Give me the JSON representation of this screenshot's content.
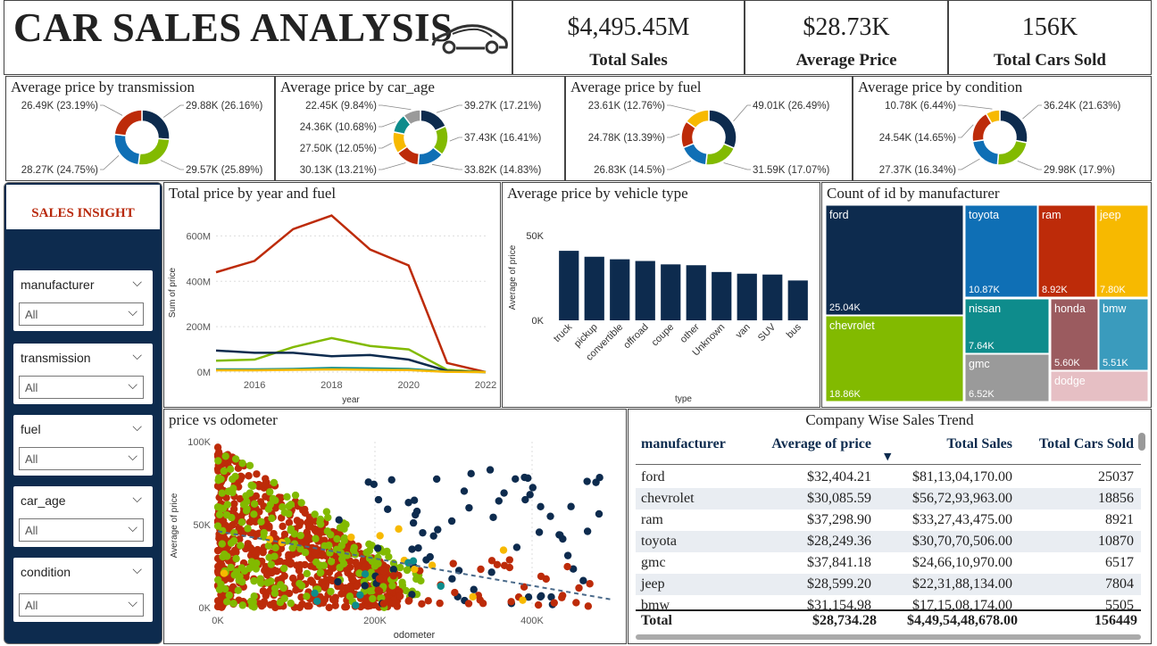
{
  "header": {
    "title": "CAR SALES ANALYSIS",
    "logo_icon": "car-icon"
  },
  "kpis": [
    {
      "value": "$4,495.45M",
      "label": "Total Sales"
    },
    {
      "value": "$28.73K",
      "label": "Average Price"
    },
    {
      "value": "156K",
      "label": "Total Cars Sold"
    }
  ],
  "colors": {
    "navy": "#0d2b4e",
    "green": "#82ba00",
    "blue": "#0f6fb5",
    "red": "#bd2b09",
    "yellow": "#f7b900",
    "teal": "#0e8c8c",
    "gray": "#9a9a9a",
    "mauve": "#9b5b5f",
    "lightblue": "#3a9bbd",
    "pink": "#e6bfc4"
  },
  "sidebar": {
    "title": "SALES INSIGHT",
    "slicers": [
      {
        "name": "manufacturer",
        "value": "All"
      },
      {
        "name": "transmission",
        "value": "All"
      },
      {
        "name": "fuel",
        "value": "All"
      },
      {
        "name": "car_age",
        "value": "All"
      },
      {
        "name": "condition",
        "value": "All"
      }
    ]
  },
  "donuts": [
    {
      "title": "Average price by transmission",
      "labels": [
        "29.88K (26.16%)",
        "29.57K (25.89%)",
        "28.27K (24.75%)",
        "26.49K (23.19%)"
      ]
    },
    {
      "title": "Average price by car_age",
      "labels": [
        "39.27K (17.21%)",
        "37.43K (16.41%)",
        "33.82K (14.83%)",
        "30.13K (13.21%)",
        "27.50K (12.05%)",
        "24.36K (10.68%)",
        "22.45K (9.84%)"
      ]
    },
    {
      "title": "Average price by fuel",
      "labels": [
        "49.01K (26.49%)",
        "31.59K (17.07%)",
        "26.83K (14.5%)",
        "24.78K (13.39%)",
        "23.61K (12.76%)"
      ]
    },
    {
      "title": "Average price by condition",
      "labels": [
        "36.24K (21.63%)",
        "29.98K (17.9%)",
        "27.37K (16.34%)",
        "24.54K (14.65%)",
        "10.78K (6.44%)"
      ]
    }
  ],
  "line_panel": {
    "title": "Total price by year and fuel"
  },
  "bar_panel": {
    "title": "Average price by vehicle type"
  },
  "treemap_panel": {
    "title": "Count of id by manufacturer"
  },
  "scatter_panel": {
    "title": "price vs odometer"
  },
  "table_panel": {
    "title": "Company Wise Sales Trend",
    "columns": [
      "manufacturer",
      "Average of price",
      "Total Sales",
      "Total Cars Sold"
    ],
    "rows": [
      [
        "ford",
        "$32,404.21",
        "$81,13,04,170.00",
        "25037"
      ],
      [
        "chevrolet",
        "$30,085.59",
        "$56,72,93,963.00",
        "18856"
      ],
      [
        "ram",
        "$37,298.90",
        "$33,27,43,475.00",
        "8921"
      ],
      [
        "toyota",
        "$28,249.36",
        "$30,70,70,506.00",
        "10870"
      ],
      [
        "gmc",
        "$37,841.18",
        "$24,66,10,970.00",
        "6517"
      ],
      [
        "jeep",
        "$28,599.20",
        "$22,31,88,134.00",
        "7804"
      ],
      [
        "bmw",
        "$31,154.98",
        "$17,15,08,174.00",
        "5505"
      ]
    ],
    "total": [
      "Total",
      "$28,734.28",
      "$4,49,54,48,678.00",
      "156449"
    ]
  },
  "chart_data": [
    {
      "type": "pie",
      "title": "Average price by transmission",
      "values": [
        29.88,
        29.57,
        28.27,
        26.49
      ],
      "percent": [
        26.16,
        25.89,
        24.75,
        23.19
      ],
      "colors": [
        "#0d2b4e",
        "#82ba00",
        "#0f6fb5",
        "#bd2b09"
      ]
    },
    {
      "type": "pie",
      "title": "Average price by car_age",
      "values": [
        39.27,
        37.43,
        33.82,
        30.13,
        27.5,
        24.36,
        22.45
      ],
      "percent": [
        17.21,
        16.41,
        14.83,
        13.21,
        12.05,
        10.68,
        9.84
      ],
      "colors": [
        "#0d2b4e",
        "#82ba00",
        "#0f6fb5",
        "#bd2b09",
        "#f7b900",
        "#0e8c8c",
        "#9a9a9a",
        "#9b5b5f"
      ]
    },
    {
      "type": "pie",
      "title": "Average price by fuel",
      "values": [
        49.01,
        31.59,
        26.83,
        24.78,
        23.61
      ],
      "percent": [
        26.49,
        17.07,
        14.5,
        13.39,
        12.76
      ],
      "colors": [
        "#0d2b4e",
        "#82ba00",
        "#0f6fb5",
        "#bd2b09",
        "#f7b900",
        "#0e8c8c"
      ]
    },
    {
      "type": "pie",
      "title": "Average price by condition",
      "values": [
        36.24,
        29.98,
        27.37,
        24.54,
        10.78
      ],
      "percent": [
        21.63,
        17.9,
        16.34,
        14.65,
        6.44
      ],
      "colors": [
        "#0d2b4e",
        "#82ba00",
        "#0f6fb5",
        "#bd2b09",
        "#f7b900",
        "#0e8c8c"
      ]
    },
    {
      "type": "line",
      "title": "Total price by year and fuel",
      "xlabel": "year",
      "ylabel": "Sum of price",
      "x": [
        2015,
        2016,
        2017,
        2018,
        2019,
        2020,
        2021,
        2022
      ],
      "xticks": [
        "2016",
        "2018",
        "2020",
        "2022"
      ],
      "yticks": [
        "0M",
        "200M",
        "400M",
        "600M"
      ],
      "ylim": [
        0,
        700
      ],
      "series": [
        {
          "color": "#bd2b09",
          "values": [
            440,
            490,
            630,
            690,
            540,
            470,
            40,
            0
          ]
        },
        {
          "color": "#82ba00",
          "values": [
            50,
            55,
            110,
            150,
            115,
            100,
            10,
            0
          ]
        },
        {
          "color": "#0d2b4e",
          "values": [
            95,
            85,
            85,
            70,
            75,
            55,
            5,
            0
          ]
        },
        {
          "color": "#0e8c8c",
          "values": [
            12,
            12,
            14,
            18,
            16,
            14,
            2,
            0
          ]
        },
        {
          "color": "#f7b900",
          "values": [
            8,
            8,
            10,
            12,
            10,
            9,
            1,
            0
          ]
        }
      ]
    },
    {
      "type": "bar",
      "title": "Average price by vehicle type",
      "xlabel": "type",
      "ylabel": "Average of price",
      "categories": [
        "truck",
        "pickup",
        "convertible",
        "offroad",
        "coupe",
        "other",
        "Unknown",
        "van",
        "SUV",
        "bus"
      ],
      "values": [
        41000,
        37500,
        36000,
        35000,
        33000,
        32500,
        28500,
        27500,
        27000,
        23500
      ],
      "yticks": [
        "0K",
        "50K"
      ],
      "ylim": [
        0,
        60000
      ]
    },
    {
      "type": "treemap",
      "title": "Count of id by manufacturer",
      "categories": [
        "ford",
        "chevrolet",
        "toyota",
        "ram",
        "jeep",
        "nissan",
        "gmc",
        "honda",
        "bmw",
        "dodge"
      ],
      "values": [
        25.04,
        18.86,
        10.87,
        8.92,
        7.8,
        7.64,
        6.52,
        5.6,
        5.51,
        null
      ],
      "labels": [
        "25.04K",
        "18.86K",
        "10.87K",
        "8.92K",
        "7.80K",
        "7.64K",
        "6.52K",
        "5.60K",
        "5.51K",
        ""
      ]
    },
    {
      "type": "scatter",
      "title": "price vs odometer",
      "xlabel": "odometer",
      "ylabel": "Average of price",
      "xticks": [
        "0K",
        "200K",
        "400K"
      ],
      "yticks": [
        "0K",
        "50K",
        "100K"
      ],
      "xlim": [
        0,
        500000
      ],
      "ylim": [
        0,
        100000
      ]
    }
  ]
}
